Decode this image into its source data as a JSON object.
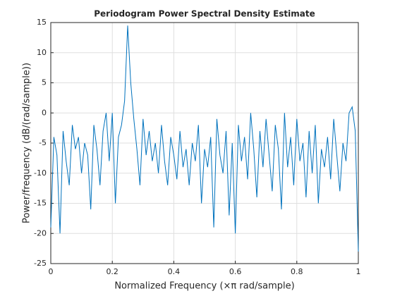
{
  "chart_data": {
    "type": "line",
    "title": "Periodogram Power Spectral Density Estimate",
    "xlabel": "Normalized Frequency (×π rad/sample)",
    "ylabel": "Power/frequency (dB/(rad/sample))",
    "x": [
      0,
      0.01,
      0.02,
      0.03,
      0.04,
      0.05,
      0.06,
      0.07,
      0.08,
      0.09,
      0.1,
      0.11,
      0.12,
      0.13,
      0.14,
      0.15,
      0.16,
      0.17,
      0.18,
      0.19,
      0.2,
      0.21,
      0.22,
      0.23,
      0.24,
      0.25,
      0.26,
      0.27,
      0.28,
      0.29,
      0.3,
      0.31,
      0.32,
      0.33,
      0.34,
      0.35,
      0.36,
      0.37,
      0.38,
      0.39,
      0.4,
      0.41,
      0.42,
      0.43,
      0.44,
      0.45,
      0.46,
      0.47,
      0.48,
      0.49,
      0.5,
      0.51,
      0.52,
      0.53,
      0.54,
      0.55,
      0.56,
      0.57,
      0.58,
      0.59,
      0.6,
      0.61,
      0.62,
      0.63,
      0.64,
      0.65,
      0.66,
      0.67,
      0.68,
      0.69,
      0.7,
      0.71,
      0.72,
      0.73,
      0.74,
      0.75,
      0.76,
      0.77,
      0.78,
      0.79,
      0.8,
      0.81,
      0.82,
      0.83,
      0.84,
      0.85,
      0.86,
      0.87,
      0.88,
      0.89,
      0.9,
      0.91,
      0.92,
      0.93,
      0.94,
      0.95,
      0.96,
      0.97,
      0.98,
      0.99,
      1
    ],
    "series": [
      {
        "color": "#0072bd",
        "values": [
          -19,
          -4,
          -7,
          -20,
          -3,
          -8,
          -12,
          -2,
          -6,
          -4,
          -10,
          -5,
          -7,
          -16,
          -2,
          -6,
          -12,
          -3,
          0,
          -8,
          0,
          -15,
          -4,
          -2,
          2,
          14.5,
          5,
          -1,
          -6,
          -12,
          -1,
          -7,
          -3,
          -8,
          -5,
          -10,
          -2,
          -8,
          -12,
          -4,
          -7,
          -11,
          -3,
          -9,
          -6,
          -12,
          -5,
          -8,
          -2,
          -15,
          -6,
          -9,
          -4,
          -19,
          -1,
          -7,
          -10,
          -3,
          -17,
          -5,
          -20,
          -2,
          -8,
          -4,
          -11,
          0,
          -6,
          -14,
          -3,
          -9,
          -1,
          -7,
          -13,
          -2,
          -6,
          -16,
          0,
          -9,
          -4,
          -12,
          -1,
          -8,
          -5,
          -14,
          -3,
          -10,
          -2,
          -15,
          -6,
          -9,
          -4,
          -11,
          -1,
          -7,
          -13,
          -5,
          -8,
          0,
          1,
          -3,
          -23
        ]
      }
    ],
    "xlim": [
      0,
      1
    ],
    "xticks": [
      0,
      0.2,
      0.4,
      0.6,
      0.8,
      1
    ],
    "ylim": [
      -25,
      15
    ],
    "yticks": [
      -25,
      -20,
      -15,
      -10,
      -5,
      0,
      5,
      10,
      15
    ],
    "grid": true
  }
}
